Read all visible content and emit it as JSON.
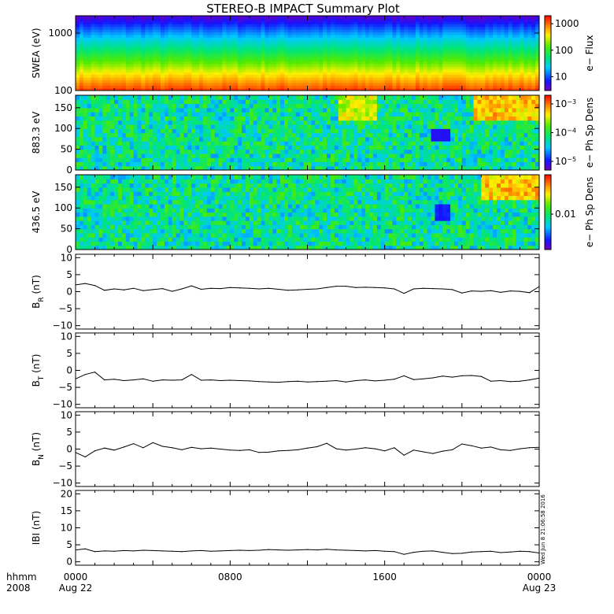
{
  "title": "STEREO-B IMPACT Summary Plot",
  "time_axis": {
    "row1_label": "hhmm",
    "row2_label": "2008",
    "ticks": [
      {
        "t": 0,
        "hhmm": "0000",
        "date": "Aug 22"
      },
      {
        "t": 8,
        "hhmm": "0800",
        "date": ""
      },
      {
        "t": 16,
        "hhmm": "1600",
        "date": ""
      },
      {
        "t": 24,
        "hhmm": "0000",
        "date": "Aug 23"
      }
    ],
    "range_hours": [
      0,
      24
    ]
  },
  "stamp": "Wed Jun  8 21:06:58 2016",
  "colors": {
    "frame": "#000000",
    "trace": "#000000",
    "background": "#ffffff"
  },
  "chart_data": [
    {
      "type": "heatmap",
      "id": "swea",
      "ylabel": "SWEA (eV)",
      "yscale": "log",
      "ylim": [
        100,
        2000
      ],
      "yticks": [
        100,
        1000
      ],
      "ytick_labels": [
        "100",
        "1000"
      ],
      "colorbar": {
        "label": "e− Flux",
        "scale": "log",
        "range": [
          3,
          2000
        ],
        "ticks": [
          10,
          100,
          1000
        ],
        "tick_labels": [
          "10",
          "100",
          "1000"
        ]
      },
      "profile": {
        "low_energy_flux": 1500,
        "high_energy_flux": 3
      }
    },
    {
      "type": "heatmap",
      "id": "pad883",
      "ylabel": "883.3 eV",
      "ylim": [
        0,
        180
      ],
      "yticks": [
        0,
        50,
        100,
        150
      ],
      "ytick_labels": [
        "0",
        "50",
        "100",
        "150"
      ],
      "colorbar": {
        "label": "e− Ph Sp Dens",
        "scale": "log",
        "range": [
          5e-06,
          0.002
        ],
        "ticks": [
          1e-05,
          0.0001,
          0.001
        ],
        "tick_labels": [
          "10",
          "10",
          "10"
        ],
        "tick_exponents": [
          "−5",
          "−4",
          "−3"
        ]
      },
      "features": [
        {
          "label": "enhanced near 180 deg",
          "t_range": [
            13.5,
            15.5
          ],
          "level": 0.8
        },
        {
          "label": "strahl",
          "t_range": [
            20.5,
            24
          ],
          "level": 0.9
        },
        {
          "label": "depletion",
          "t": 18.8,
          "pitch": 85,
          "level": 0.1
        }
      ]
    },
    {
      "type": "heatmap",
      "id": "pad436",
      "ylabel": "436.5 eV",
      "ylim": [
        0,
        180
      ],
      "yticks": [
        0,
        50,
        100,
        150
      ],
      "ytick_labels": [
        "0",
        "50",
        "100",
        "150"
      ],
      "colorbar": {
        "label": "e− Ph Sp Dens",
        "scale": "log",
        "range": [
          0.002,
          0.06
        ],
        "ticks": [
          0.01
        ],
        "tick_labels": [
          "0.01"
        ]
      },
      "features": [
        {
          "label": "strahl",
          "t_range": [
            21,
            24
          ],
          "level": 0.9
        },
        {
          "label": "depletion",
          "t_range": [
            18.5,
            19.3
          ],
          "pitch": 90,
          "level": 0.1
        }
      ]
    },
    {
      "type": "line",
      "id": "br",
      "ylabel_main": "B",
      "ylabel_sub": "R",
      "ylabel_unit": " (nT)",
      "ylim": [
        -11,
        11
      ],
      "yticks": [
        -10,
        -5,
        0,
        5,
        10
      ],
      "ytick_labels": [
        "−10",
        "−5",
        "0",
        "5",
        "10"
      ],
      "x": [
        0,
        0.5,
        1,
        1.5,
        2,
        2.5,
        3,
        3.5,
        4,
        4.5,
        5,
        5.5,
        6,
        6.5,
        7,
        7.5,
        8,
        8.5,
        9,
        9.5,
        10,
        10.5,
        11,
        11.5,
        12,
        12.5,
        13,
        13.5,
        14,
        14.5,
        15,
        15.5,
        16,
        16.5,
        17,
        17.5,
        18,
        18.5,
        19,
        19.5,
        20,
        20.5,
        21,
        21.5,
        22,
        22.5,
        23,
        23.5,
        24
      ],
      "values": [
        2,
        2.4,
        1.8,
        0.4,
        0.8,
        0.5,
        1,
        0.3,
        0.6,
        0.9,
        0.1,
        0.8,
        1.7,
        0.7,
        1,
        0.9,
        1.2,
        1.1,
        1,
        0.8,
        1,
        0.7,
        0.4,
        0.5,
        0.7,
        0.8,
        1.2,
        1.6,
        1.6,
        1.2,
        1.3,
        1.2,
        1.1,
        0.8,
        -0.5,
        0.8,
        1,
        0.9,
        0.8,
        0.6,
        -0.4,
        0.2,
        0.1,
        0.3,
        -0.2,
        0.2,
        0.1,
        -0.3,
        1.5
      ]
    },
    {
      "type": "line",
      "id": "bt",
      "ylabel_main": "B",
      "ylabel_sub": "T",
      "ylabel_unit": " (nT)",
      "ylim": [
        -11,
        11
      ],
      "yticks": [
        -10,
        -5,
        0,
        5,
        10
      ],
      "ytick_labels": [
        "−10",
        "−5",
        "0",
        "5",
        "10"
      ],
      "x": [
        0,
        0.5,
        1,
        1.5,
        2,
        2.5,
        3,
        3.5,
        4,
        4.5,
        5,
        5.5,
        6,
        6.5,
        7,
        7.5,
        8,
        8.5,
        9,
        9.5,
        10,
        10.5,
        11,
        11.5,
        12,
        12.5,
        13,
        13.5,
        14,
        14.5,
        15,
        15.5,
        16,
        16.5,
        17,
        17.5,
        18,
        18.5,
        19,
        19.5,
        20,
        20.5,
        21,
        21.5,
        22,
        22.5,
        23,
        23.5,
        24
      ],
      "values": [
        -2.5,
        -1.2,
        -0.5,
        -2.8,
        -2.6,
        -3,
        -2.8,
        -2.5,
        -3.2,
        -2.8,
        -2.9,
        -2.8,
        -1.2,
        -2.9,
        -2.8,
        -3,
        -2.9,
        -3,
        -3.1,
        -3.3,
        -3.4,
        -3.5,
        -3.3,
        -3.2,
        -3.4,
        -3.3,
        -3.2,
        -3,
        -3.4,
        -3,
        -2.8,
        -3.1,
        -2.9,
        -2.6,
        -1.6,
        -2.7,
        -2.5,
        -2.2,
        -1.7,
        -2,
        -1.6,
        -1.5,
        -1.8,
        -3.2,
        -3,
        -3.3,
        -3.2,
        -2.8,
        -2.3
      ]
    },
    {
      "type": "line",
      "id": "bn",
      "ylabel_main": "B",
      "ylabel_sub": "N",
      "ylabel_unit": " (nT)",
      "ylim": [
        -11,
        11
      ],
      "yticks": [
        -10,
        -5,
        0,
        5,
        10
      ],
      "ytick_labels": [
        "−10",
        "−5",
        "0",
        "5",
        "10"
      ],
      "x": [
        0,
        0.5,
        1,
        1.5,
        2,
        2.5,
        3,
        3.5,
        4,
        4.5,
        5,
        5.5,
        6,
        6.5,
        7,
        7.5,
        8,
        8.5,
        9,
        9.5,
        10,
        10.5,
        11,
        11.5,
        12,
        12.5,
        13,
        13.5,
        14,
        14.5,
        15,
        15.5,
        16,
        16.5,
        17,
        17.5,
        18,
        18.5,
        19,
        19.5,
        20,
        20.5,
        21,
        21.5,
        22,
        22.5,
        23,
        23.5,
        24
      ],
      "values": [
        -1,
        -2.3,
        -0.5,
        0.3,
        -0.3,
        0.6,
        1.6,
        0.4,
        1.9,
        0.8,
        0.4,
        -0.2,
        0.5,
        0.1,
        0.3,
        0,
        -0.3,
        -0.4,
        -0.2,
        -1,
        -0.9,
        -0.5,
        -0.4,
        -0.2,
        0.3,
        0.7,
        1.7,
        0.1,
        -0.3,
        0,
        0.4,
        0.1,
        -0.5,
        0.4,
        -1.8,
        -0.3,
        -0.8,
        -1.3,
        -0.6,
        -0.2,
        1.5,
        1,
        0.3,
        0.6,
        -0.2,
        -0.4,
        0.1,
        0.4,
        0.5
      ]
    },
    {
      "type": "line",
      "id": "bmag",
      "ylabel_main": "IBI",
      "ylabel_sub": "",
      "ylabel_unit": " (nT)",
      "ylim": [
        -1,
        21
      ],
      "yticks": [
        0,
        5,
        10,
        15,
        20
      ],
      "ytick_labels": [
        "0",
        "5",
        "10",
        "15",
        "20"
      ],
      "x": [
        0,
        0.5,
        1,
        1.5,
        2,
        2.5,
        3,
        3.5,
        4,
        4.5,
        5,
        5.5,
        6,
        6.5,
        7,
        7.5,
        8,
        8.5,
        9,
        9.5,
        10,
        10.5,
        11,
        11.5,
        12,
        12.5,
        13,
        13.5,
        14,
        14.5,
        15,
        15.5,
        16,
        16.5,
        17,
        17.5,
        18,
        18.5,
        19,
        19.5,
        20,
        20.5,
        21,
        21.5,
        22,
        22.5,
        23,
        23.5,
        24
      ],
      "values": [
        3.5,
        3.8,
        3,
        3.2,
        3.1,
        3.3,
        3.2,
        3.4,
        3.3,
        3.2,
        3.1,
        3,
        3.2,
        3.3,
        3.1,
        3.2,
        3.3,
        3.4,
        3.3,
        3.4,
        3.6,
        3.5,
        3.4,
        3.5,
        3.6,
        3.5,
        3.7,
        3.5,
        3.4,
        3.3,
        3.2,
        3.3,
        3.1,
        3,
        2.2,
        2.8,
        3.1,
        3.2,
        2.8,
        2.4,
        2.5,
        2.9,
        3,
        3.1,
        2.7,
        2.9,
        3.1,
        3,
        2.6
      ]
    }
  ]
}
